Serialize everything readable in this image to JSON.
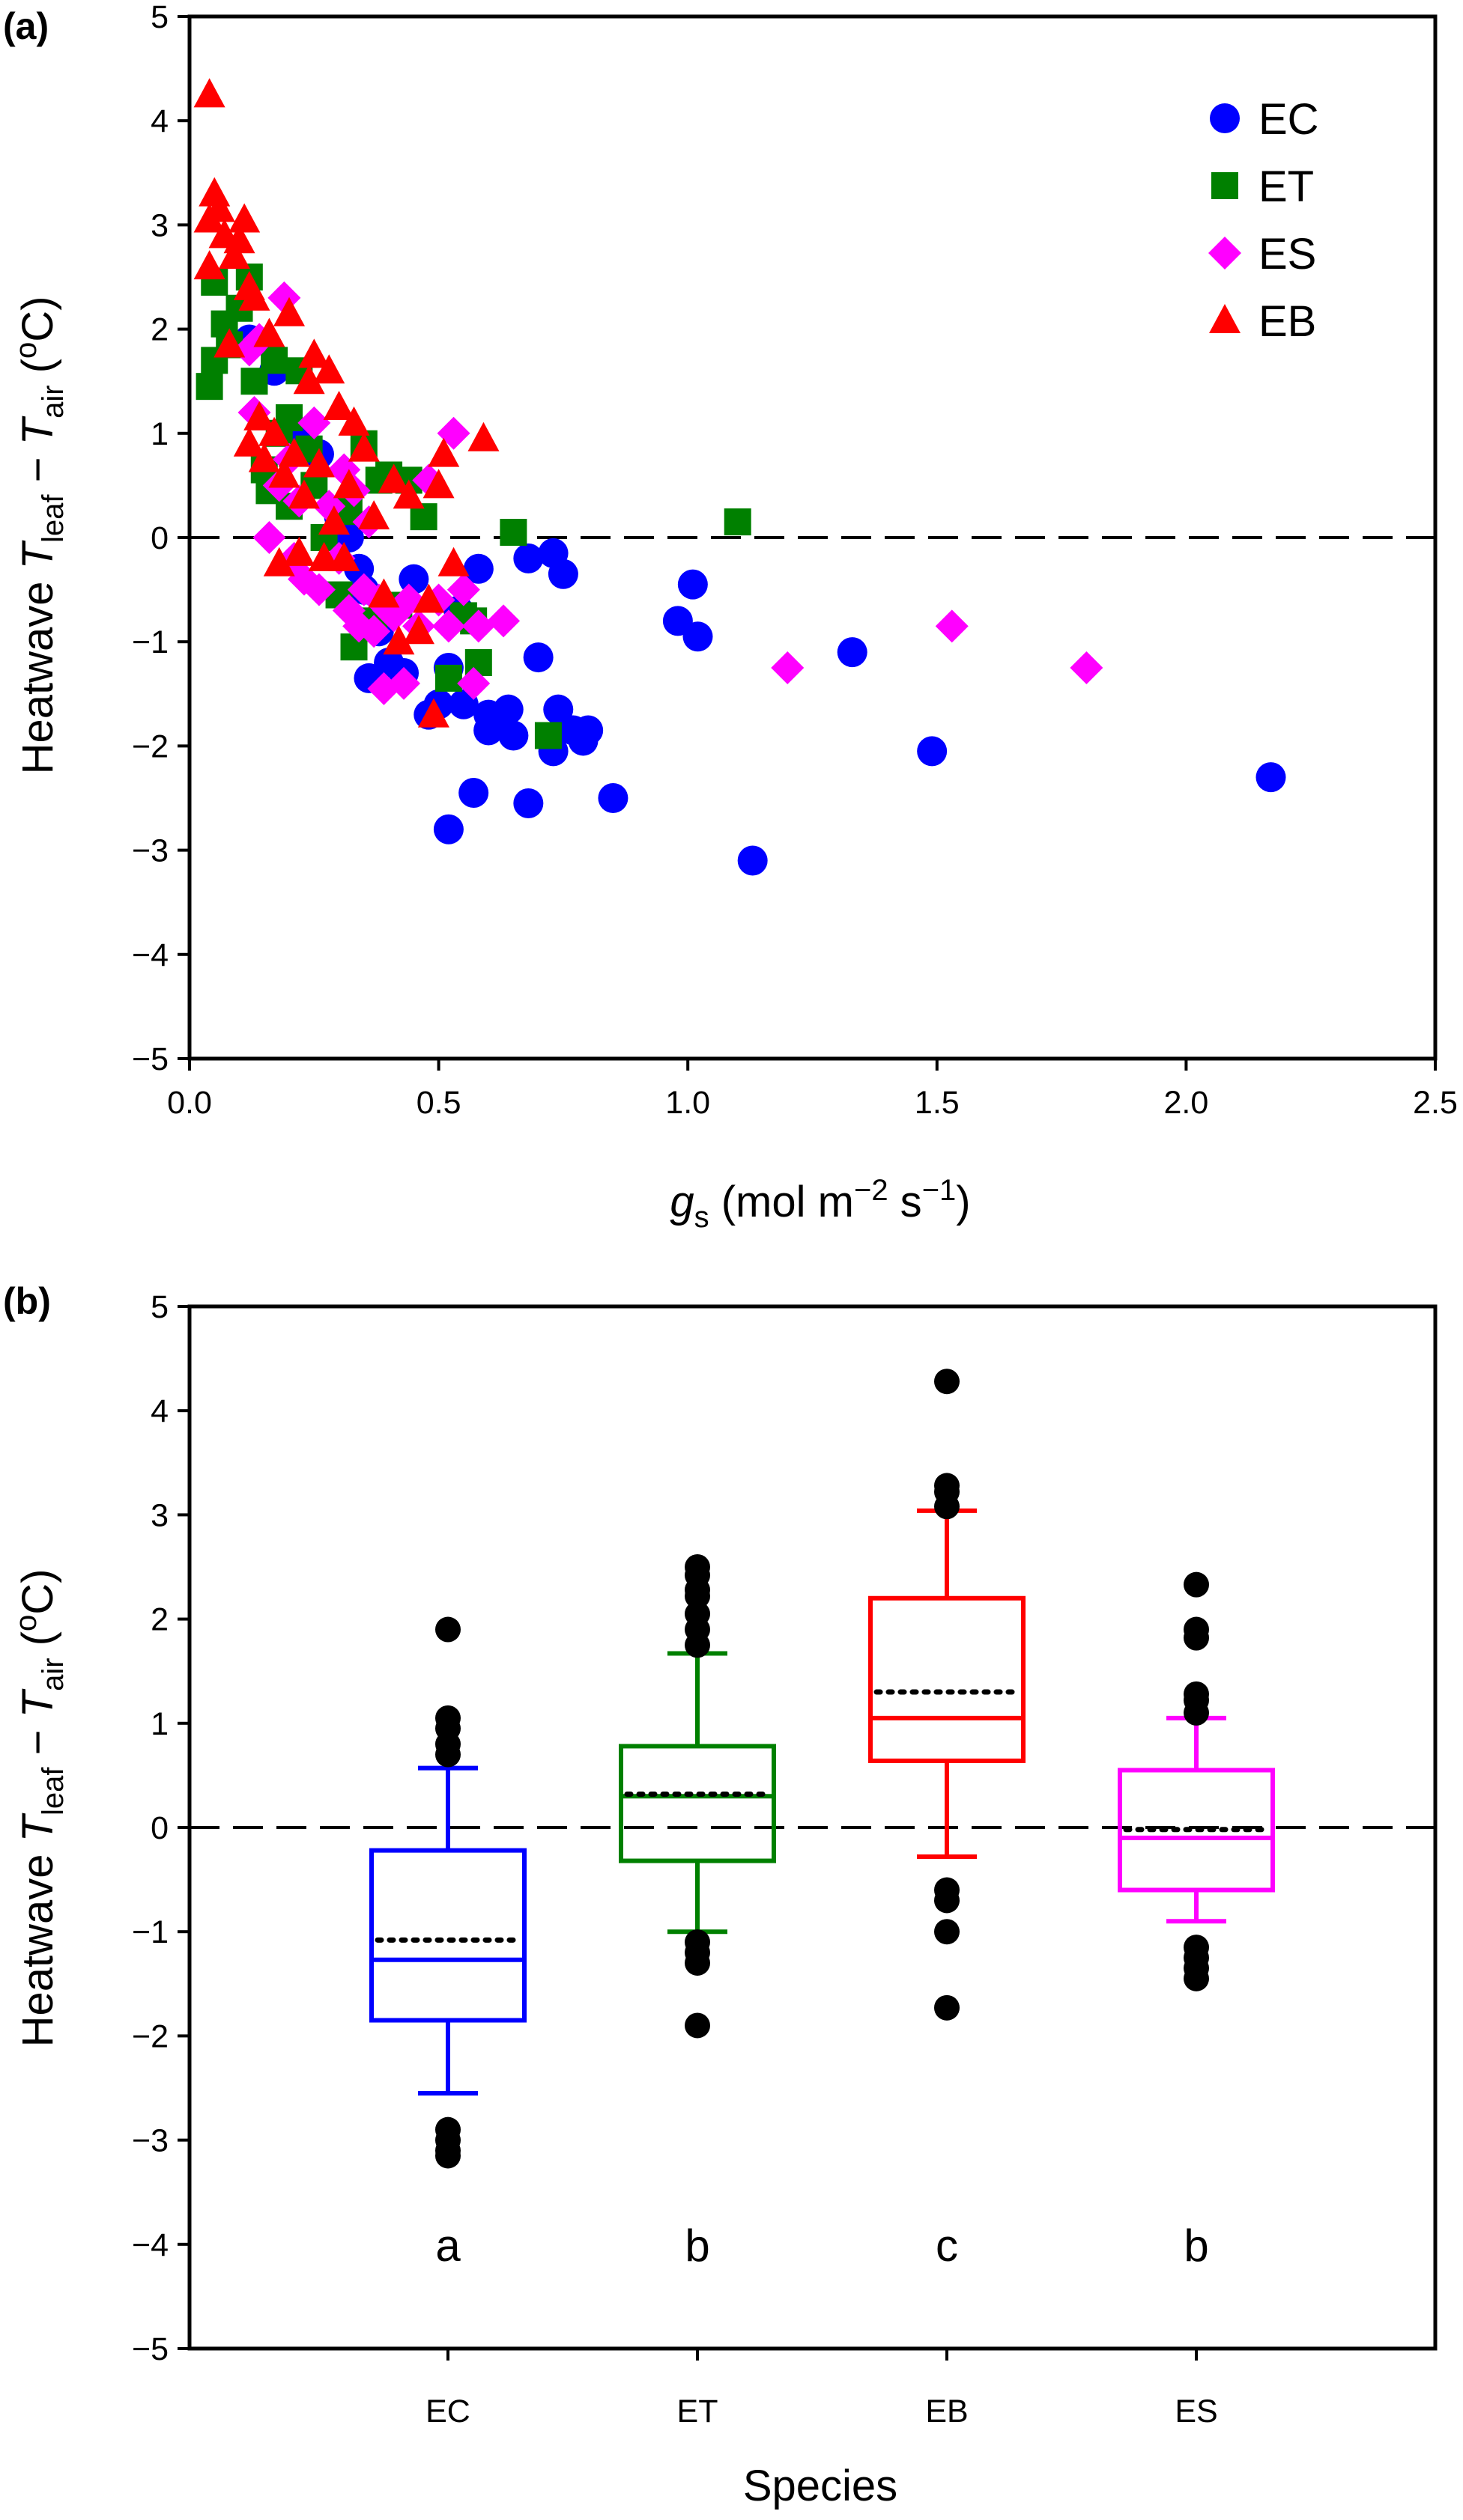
{
  "chart_data": [
    {
      "panel_label": "(a)",
      "type": "scatter",
      "ylabel_parts": {
        "main": "Heatwave ",
        "t1": "T",
        "s1": "leaf",
        "minus": " − ",
        "t2": "T",
        "s2": "air",
        "unit_open": " (",
        "sup": "o",
        "unit_close": "C)"
      },
      "xlabel_parts": {
        "g": "g",
        "sub": "s",
        "u1": " (mol m",
        "sup1": "−2",
        "u2": " s",
        "sup2": "−1",
        "u3": ")"
      },
      "xlim": [
        0,
        2.5
      ],
      "ylim": [
        -5,
        5
      ],
      "xticks": [
        "0.0",
        "0.5",
        "1.0",
        "1.5",
        "2.0",
        "2.5"
      ],
      "yticks": [
        "−5",
        "−4",
        "−3",
        "−2",
        "−1",
        "0",
        "1",
        "2",
        "3",
        "4",
        "5"
      ],
      "xtick_values": [
        0,
        0.5,
        1.0,
        1.5,
        2.0,
        2.5
      ],
      "ytick_values": [
        -5,
        -4,
        -3,
        -2,
        -1,
        0,
        1,
        2,
        3,
        4,
        5
      ],
      "reference_line_y": 0,
      "legend_position": "top-right",
      "series": [
        {
          "name": "EC",
          "marker": "circle",
          "color": "#0000ff",
          "points": [
            [
              0.12,
              1.9
            ],
            [
              0.17,
              1.6
            ],
            [
              0.22,
              1.0
            ],
            [
              0.26,
              0.8
            ],
            [
              0.3,
              0.2
            ],
            [
              0.32,
              0.0
            ],
            [
              0.34,
              -0.3
            ],
            [
              0.35,
              -0.5
            ],
            [
              0.36,
              -1.35
            ],
            [
              0.38,
              -0.9
            ],
            [
              0.4,
              -1.2
            ],
            [
              0.43,
              -1.3
            ],
            [
              0.45,
              -0.4
            ],
            [
              0.48,
              -1.7
            ],
            [
              0.5,
              -1.6
            ],
            [
              0.52,
              -1.25
            ],
            [
              0.52,
              -2.8
            ],
            [
              0.54,
              -0.7
            ],
            [
              0.55,
              -1.6
            ],
            [
              0.57,
              -2.45
            ],
            [
              0.58,
              -0.3
            ],
            [
              0.6,
              -1.7
            ],
            [
              0.6,
              -1.85
            ],
            [
              0.62,
              -1.75
            ],
            [
              0.64,
              -1.65
            ],
            [
              0.65,
              -1.9
            ],
            [
              0.68,
              -2.55
            ],
            [
              0.68,
              -0.2
            ],
            [
              0.7,
              -1.15
            ],
            [
              0.73,
              -2.05
            ],
            [
              0.73,
              -0.15
            ],
            [
              0.74,
              -1.65
            ],
            [
              0.75,
              -0.35
            ],
            [
              0.77,
              -1.85
            ],
            [
              0.79,
              -1.95
            ],
            [
              0.8,
              -1.85
            ],
            [
              0.85,
              -2.5
            ],
            [
              0.98,
              -0.8
            ],
            [
              1.01,
              -0.45
            ],
            [
              1.02,
              -0.95
            ],
            [
              1.13,
              -3.1
            ],
            [
              1.33,
              -1.1
            ],
            [
              1.49,
              -2.05
            ],
            [
              2.17,
              -2.3
            ]
          ]
        },
        {
          "name": "ET",
          "marker": "square",
          "color": "#008000",
          "points": [
            [
              0.04,
              1.45
            ],
            [
              0.05,
              1.7
            ],
            [
              0.05,
              2.45
            ],
            [
              0.07,
              2.05
            ],
            [
              0.08,
              1.85
            ],
            [
              0.1,
              2.2
            ],
            [
              0.12,
              2.5
            ],
            [
              0.13,
              1.5
            ],
            [
              0.15,
              0.65
            ],
            [
              0.16,
              0.45
            ],
            [
              0.17,
              1.7
            ],
            [
              0.18,
              1.0
            ],
            [
              0.2,
              0.3
            ],
            [
              0.2,
              1.15
            ],
            [
              0.22,
              1.6
            ],
            [
              0.24,
              0.85
            ],
            [
              0.25,
              0.5
            ],
            [
              0.27,
              0.0
            ],
            [
              0.3,
              -0.55
            ],
            [
              0.32,
              0.25
            ],
            [
              0.33,
              -1.05
            ],
            [
              0.35,
              0.9
            ],
            [
              0.37,
              -0.8
            ],
            [
              0.38,
              0.55
            ],
            [
              0.4,
              0.6
            ],
            [
              0.42,
              -0.65
            ],
            [
              0.44,
              0.55
            ],
            [
              0.47,
              0.2
            ],
            [
              0.52,
              -1.35
            ],
            [
              0.55,
              -0.75
            ],
            [
              0.57,
              -0.8
            ],
            [
              0.58,
              -1.2
            ],
            [
              0.65,
              0.05
            ],
            [
              0.72,
              -1.9
            ],
            [
              1.1,
              0.15
            ]
          ]
        },
        {
          "name": "ES",
          "marker": "diamond",
          "color": "#ff00ff",
          "points": [
            [
              0.12,
              1.8
            ],
            [
              0.13,
              1.2
            ],
            [
              0.14,
              1.9
            ],
            [
              0.16,
              0.0
            ],
            [
              0.18,
              0.5
            ],
            [
              0.19,
              2.3
            ],
            [
              0.2,
              0.75
            ],
            [
              0.21,
              -0.2
            ],
            [
              0.22,
              0.35
            ],
            [
              0.23,
              -0.4
            ],
            [
              0.25,
              1.1
            ],
            [
              0.26,
              -0.5
            ],
            [
              0.28,
              0.3
            ],
            [
              0.3,
              -0.2
            ],
            [
              0.31,
              0.65
            ],
            [
              0.32,
              -0.7
            ],
            [
              0.33,
              0.45
            ],
            [
              0.34,
              -0.85
            ],
            [
              0.35,
              -0.5
            ],
            [
              0.36,
              0.15
            ],
            [
              0.37,
              -0.9
            ],
            [
              0.38,
              -0.6
            ],
            [
              0.39,
              -1.45
            ],
            [
              0.4,
              -0.7
            ],
            [
              0.41,
              -0.75
            ],
            [
              0.43,
              -1.4
            ],
            [
              0.44,
              -0.6
            ],
            [
              0.46,
              -0.85
            ],
            [
              0.48,
              0.55
            ],
            [
              0.5,
              -0.6
            ],
            [
              0.52,
              -0.85
            ],
            [
              0.53,
              1.0
            ],
            [
              0.55,
              -0.5
            ],
            [
              0.57,
              -1.4
            ],
            [
              0.58,
              -0.85
            ],
            [
              0.63,
              -0.8
            ],
            [
              1.2,
              -1.25
            ],
            [
              1.53,
              -0.85
            ],
            [
              1.8,
              -1.25
            ]
          ]
        },
        {
          "name": "EB",
          "marker": "triangle",
          "color": "#ff0000",
          "points": [
            [
              0.04,
              4.25
            ],
            [
              0.04,
              3.05
            ],
            [
              0.04,
              2.6
            ],
            [
              0.05,
              3.3
            ],
            [
              0.06,
              3.15
            ],
            [
              0.07,
              2.9
            ],
            [
              0.08,
              1.85
            ],
            [
              0.09,
              2.7
            ],
            [
              0.1,
              2.85
            ],
            [
              0.11,
              3.05
            ],
            [
              0.12,
              0.9
            ],
            [
              0.12,
              2.4
            ],
            [
              0.13,
              2.3
            ],
            [
              0.14,
              1.15
            ],
            [
              0.15,
              0.75
            ],
            [
              0.16,
              1.95
            ],
            [
              0.17,
              1.0
            ],
            [
              0.18,
              -0.25
            ],
            [
              0.19,
              0.6
            ],
            [
              0.2,
              2.15
            ],
            [
              0.21,
              0.8
            ],
            [
              0.22,
              -0.15
            ],
            [
              0.23,
              0.4
            ],
            [
              0.24,
              1.5
            ],
            [
              0.25,
              1.75
            ],
            [
              0.26,
              0.7
            ],
            [
              0.27,
              -0.2
            ],
            [
              0.28,
              1.6
            ],
            [
              0.29,
              0.15
            ],
            [
              0.3,
              1.25
            ],
            [
              0.31,
              -0.2
            ],
            [
              0.32,
              0.5
            ],
            [
              0.33,
              1.1
            ],
            [
              0.35,
              0.85
            ],
            [
              0.37,
              0.2
            ],
            [
              0.39,
              -0.55
            ],
            [
              0.41,
              0.55
            ],
            [
              0.42,
              -1.0
            ],
            [
              0.44,
              0.4
            ],
            [
              0.46,
              -0.9
            ],
            [
              0.48,
              -0.6
            ],
            [
              0.49,
              -1.7
            ],
            [
              0.5,
              0.5
            ],
            [
              0.51,
              0.8
            ],
            [
              0.53,
              -0.25
            ],
            [
              0.59,
              0.95
            ]
          ]
        }
      ]
    },
    {
      "panel_label": "(b)",
      "type": "box",
      "ylabel_parts": {
        "main": "Heatwave ",
        "t1": "T",
        "s1": "leaf",
        "minus": " − ",
        "t2": "T",
        "s2": "air",
        "unit_open": " (",
        "sup": "o",
        "unit_close": "C)"
      },
      "xlabel": "Species",
      "ylim": [
        -5,
        5
      ],
      "yticks": [
        "−5",
        "−4",
        "−3",
        "−2",
        "−1",
        "0",
        "1",
        "2",
        "3",
        "4",
        "5"
      ],
      "ytick_values": [
        -5,
        -4,
        -3,
        -2,
        -1,
        0,
        1,
        2,
        3,
        4,
        5
      ],
      "reference_line_y": 0,
      "categories": [
        "EC",
        "ET",
        "EB",
        "ES"
      ],
      "significance_letters": [
        "a",
        "b",
        "c",
        "b"
      ],
      "boxes": [
        {
          "name": "EC",
          "color": "#0000ff",
          "whisker_low": -2.55,
          "q1": -1.85,
          "median": -1.27,
          "mean": -1.08,
          "q3": -0.22,
          "whisker_high": 0.57,
          "outliers": [
            1.9,
            1.05,
            0.95,
            0.8,
            0.7,
            -2.9,
            -3.0,
            -3.1,
            -3.15
          ]
        },
        {
          "name": "ET",
          "color": "#008000",
          "whisker_low": -1.0,
          "q1": -0.32,
          "median": 0.3,
          "mean": 0.32,
          "q3": 0.78,
          "whisker_high": 1.67,
          "outliers": [
            2.5,
            2.42,
            2.28,
            2.22,
            2.05,
            1.9,
            1.75,
            -1.1,
            -1.2,
            -1.3,
            -1.9
          ]
        },
        {
          "name": "EB",
          "color": "#ff0000",
          "whisker_low": -0.28,
          "q1": 0.64,
          "median": 1.05,
          "mean": 1.3,
          "q3": 2.2,
          "whisker_high": 3.04,
          "outliers": [
            4.28,
            3.28,
            3.22,
            3.08,
            -0.6,
            -0.7,
            -1.0,
            -1.73
          ]
        },
        {
          "name": "ES",
          "color": "#ff00ff",
          "whisker_low": -0.9,
          "q1": -0.6,
          "median": -0.1,
          "mean": -0.02,
          "q3": 0.55,
          "whisker_high": 1.05,
          "outliers": [
            2.33,
            1.9,
            1.82,
            1.28,
            1.22,
            1.1,
            -1.15,
            -1.25,
            -1.35,
            -1.45
          ]
        }
      ]
    }
  ]
}
